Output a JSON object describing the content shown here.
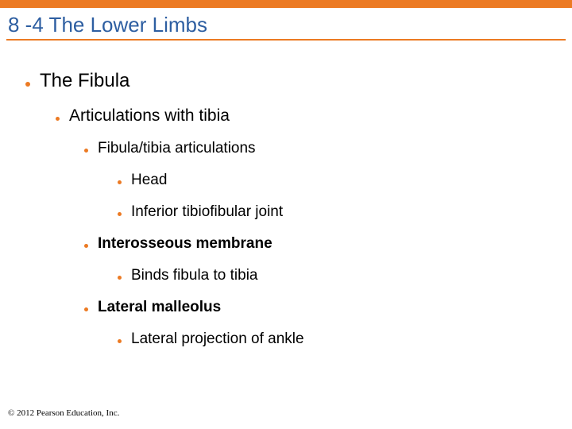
{
  "colors": {
    "accent": "#ec7a23",
    "text": "#000000",
    "title": "#2d5ea1",
    "background": "#ffffff"
  },
  "title": "8 -4 The Lower Limbs",
  "bullets": {
    "b1": "The Fibula",
    "b2": "Articulations with tibia",
    "b3": "Fibula/tibia articulations",
    "b4": "Head",
    "b5": "Inferior tibiofibular joint",
    "b6": "Interosseous membrane",
    "b7": "Binds fibula to tibia",
    "b8": "Lateral malleolus",
    "b9": "Lateral projection of ankle"
  },
  "copyright": "© 2012 Pearson Education, Inc."
}
